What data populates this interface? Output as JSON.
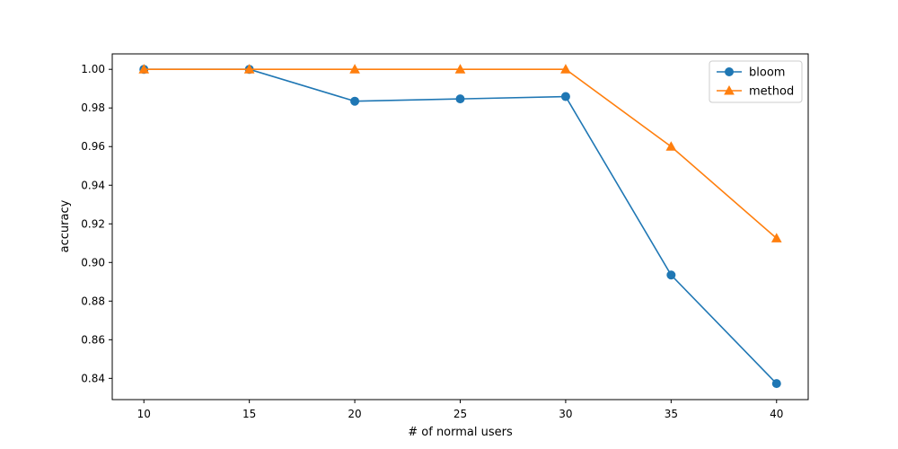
{
  "chart_data": {
    "type": "line",
    "title": "",
    "xlabel": "# of normal users",
    "ylabel": "accuracy",
    "x": [
      10,
      15,
      20,
      25,
      30,
      35,
      40
    ],
    "xticks": [
      10,
      15,
      20,
      25,
      30,
      35,
      40
    ],
    "yticks": [
      0.84,
      0.86,
      0.88,
      0.9,
      0.92,
      0.94,
      0.96,
      0.98,
      1.0
    ],
    "ytick_labels": [
      "0.84",
      "0.86",
      "0.88",
      "0.90",
      "0.92",
      "0.94",
      "0.96",
      "0.98",
      "1.00"
    ],
    "xlim": [
      8.5,
      41.5
    ],
    "ylim": [
      0.829,
      1.008
    ],
    "grid": false,
    "legend_position": "top-right",
    "series": [
      {
        "name": "bloom",
        "marker": "circle",
        "color": "#1f77b4",
        "values": [
          1.0,
          1.0,
          0.9835,
          0.9847,
          0.9859,
          0.8935,
          0.8373
        ]
      },
      {
        "name": "method",
        "marker": "triangle",
        "color": "#ff7f0e",
        "values": [
          1.0,
          1.0,
          1.0,
          1.0,
          1.0,
          0.96,
          0.9125
        ]
      }
    ]
  }
}
